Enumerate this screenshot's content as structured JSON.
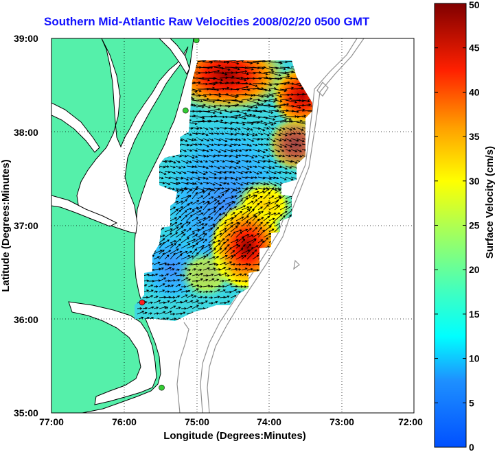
{
  "title": "Southern Mid-Atlantic Raw Velocities 2008/02/20 0500 GMT",
  "x_axis": {
    "label": "Longitude (Degrees:Minutes)",
    "ticks": [
      "77:00",
      "76:00",
      "75:00",
      "74:00",
      "73:00",
      "72:00"
    ]
  },
  "y_axis": {
    "label": "Latitude (Degrees:Minutes)",
    "ticks": [
      "39:00",
      "38:00",
      "37:00",
      "36:00",
      "35:00"
    ]
  },
  "colorbar": {
    "label": "Surface Velocity (cm/s)",
    "ticks": [
      "50",
      "45",
      "40",
      "35",
      "30",
      "25",
      "20",
      "15",
      "10",
      "5",
      "0"
    ],
    "min": 0,
    "max": 50,
    "colormap": "jet"
  },
  "colors": {
    "land": "#55f0aa",
    "coastline": "#000000",
    "bathymetry": "#909090",
    "title": "#1010ff"
  },
  "chart_data": {
    "type": "heatmap",
    "xlim": [
      -77,
      -72
    ],
    "ylim": [
      35,
      39
    ],
    "units": "cm/s",
    "stations": [
      {
        "lon": -75.0,
        "lat": 38.98,
        "color": "#33cc33"
      },
      {
        "lon": -75.15,
        "lat": 38.23,
        "color": "#33cc33"
      },
      {
        "lon": -75.75,
        "lat": 36.18,
        "color": "#ff2020"
      },
      {
        "lon": -75.48,
        "lat": 35.27,
        "color": "#33cc33"
      }
    ],
    "regions": [
      {
        "name": "nj-shelf-high",
        "lon": -74.75,
        "lat": 38.65,
        "speed": 45
      },
      {
        "name": "offshore-east-high",
        "lon": -73.55,
        "lat": 38.35,
        "speed": 42
      },
      {
        "name": "south-high",
        "lon": -74.35,
        "lat": 36.7,
        "speed": 40
      },
      {
        "name": "mid-yellow",
        "lon": -74.0,
        "lat": 37.25,
        "speed": 28
      },
      {
        "name": "central-blue",
        "lon": -74.9,
        "lat": 37.2,
        "speed": 10
      }
    ]
  }
}
